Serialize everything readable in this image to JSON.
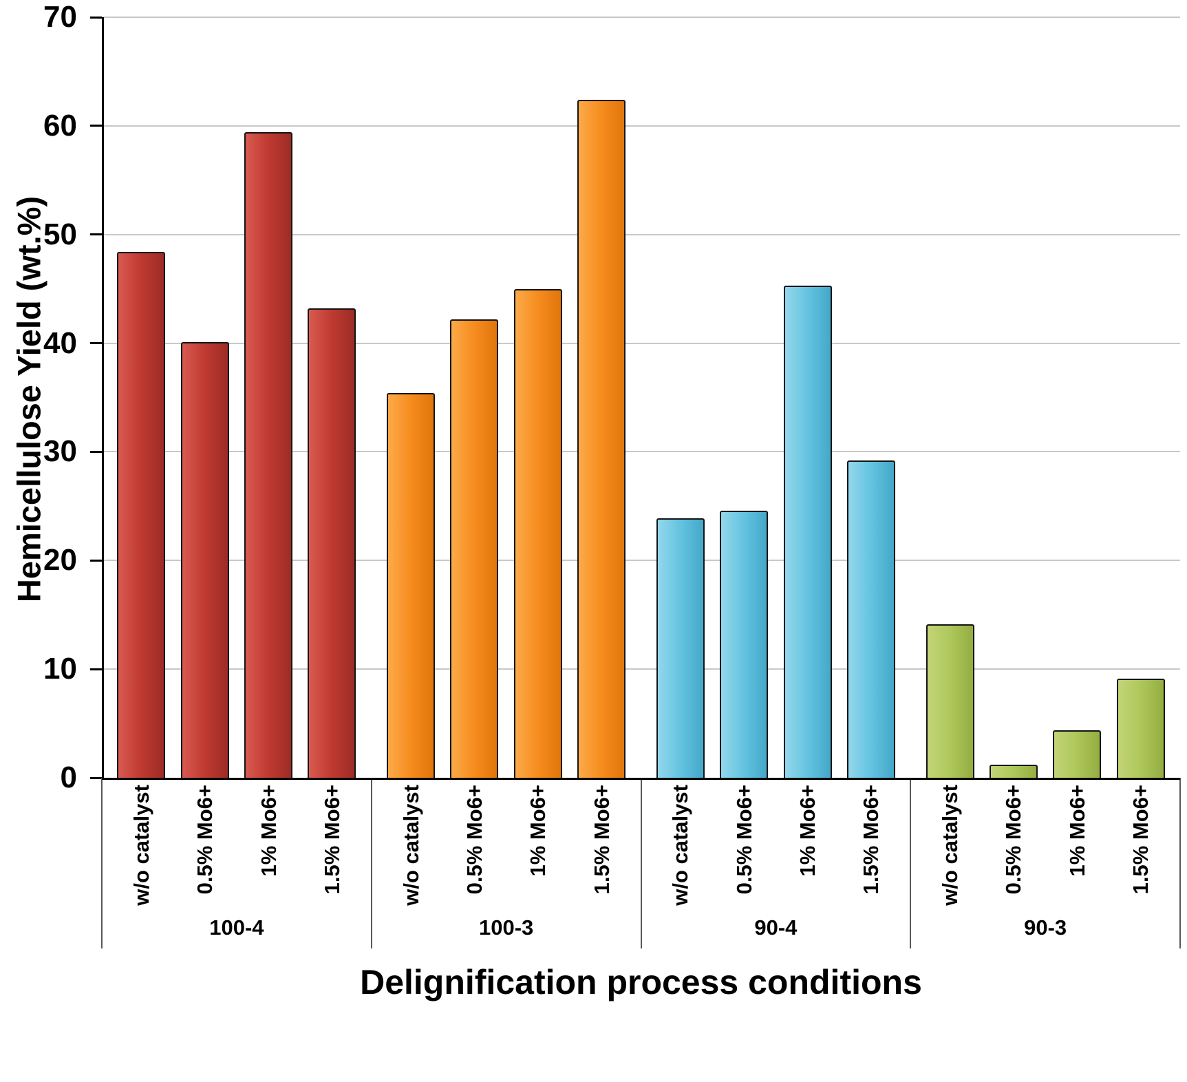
{
  "chart_data": {
    "type": "bar",
    "title": "",
    "xlabel": "Delignification process conditions",
    "ylabel": "Hemicellulose Yield (wt.%)",
    "ylim": [
      0,
      70
    ],
    "yticks": [
      0,
      10,
      20,
      30,
      40,
      50,
      60,
      70
    ],
    "grid": true,
    "legend_position": "none",
    "bar_labels": [
      "w/o catalyst",
      "0.5% Mo6+",
      "1% Mo6+",
      "1.5% Mo6+"
    ],
    "groups": [
      {
        "label": "100-4",
        "color": "#bf3a31",
        "color_light": "#d85a50",
        "color_dark": "#9c2c25",
        "values": [
          48.4,
          40.1,
          59.4,
          43.2
        ]
      },
      {
        "label": "100-3",
        "color": "#f68c1e",
        "color_light": "#fcaa49",
        "color_dark": "#e0760c",
        "values": [
          35.4,
          42.2,
          45.0,
          62.4
        ]
      },
      {
        "label": "90-4",
        "color": "#63c3e0",
        "color_light": "#93d7ec",
        "color_dark": "#45a8c9",
        "values": [
          23.9,
          24.6,
          45.3,
          29.2
        ]
      },
      {
        "label": "90-3",
        "color": "#aec75b",
        "color_light": "#c3d578",
        "color_dark": "#94ad41",
        "values": [
          14.1,
          1.2,
          4.4,
          9.1
        ]
      }
    ],
    "axis_color": "#000000",
    "gridline_color": "#c8c8c8"
  }
}
